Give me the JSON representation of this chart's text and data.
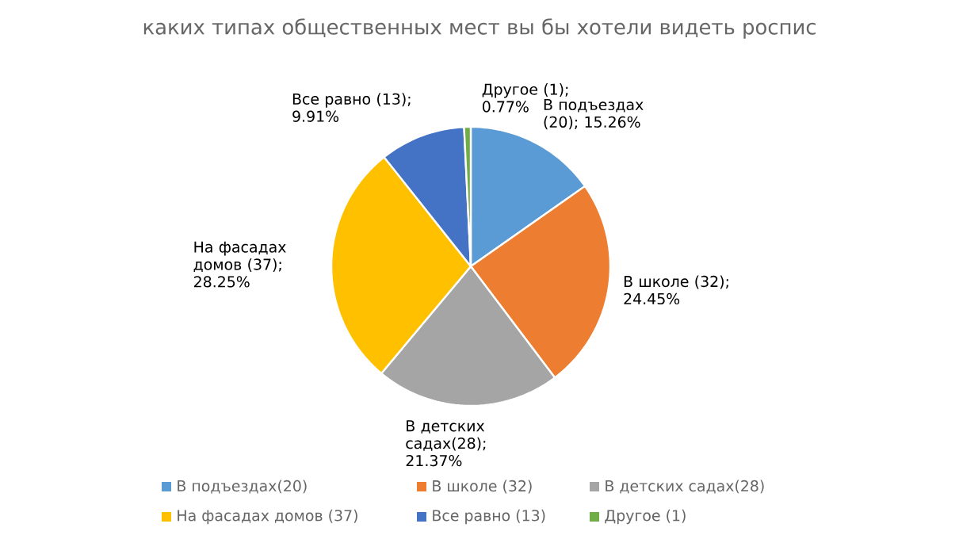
{
  "chart_data": {
    "type": "pie",
    "title": "каких типах общественных мест вы бы хотели видеть роспис",
    "categories": [
      "В подъездах(20)",
      "В школе (32)",
      "В детских садах(28)",
      "На фасадах домов (37)",
      "Все равно (13)",
      "Другое (1)"
    ],
    "values": [
      15.26,
      24.45,
      21.37,
      28.25,
      9.91,
      0.77
    ],
    "value_labels": [
      "В подъездах (20); 15.26%",
      "В школе (32); 24.45%",
      "В детских садах(28); 21.37%",
      "На фасадах домов (37); 28.25%",
      "Все равно (13); 9.91%",
      "Другое (1); 0.77%"
    ],
    "colors": [
      "#5b9bd5",
      "#ed7d31",
      "#a5a5a5",
      "#ffc000",
      "#4472c4",
      "#70ad47"
    ],
    "legend": "bottom"
  }
}
